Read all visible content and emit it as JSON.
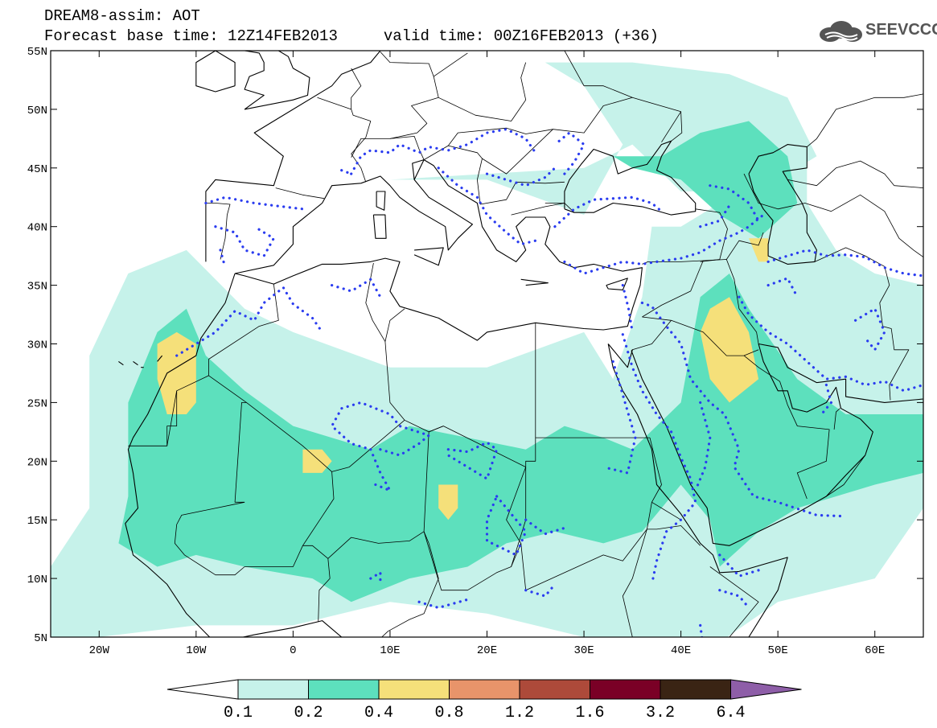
{
  "header": {
    "title_line1": "DREAM8-assim: AOT",
    "title_line2": "Forecast base time: 12Z14FEB2013     valid time: 00Z16FEB2013 (+36)"
  },
  "logo": {
    "text": "SEEVCCC"
  },
  "map": {
    "lon_range": [
      -25,
      65
    ],
    "lat_range": [
      5,
      55
    ],
    "lat_ticks": [
      {
        "value": 55,
        "label": "55N"
      },
      {
        "value": 50,
        "label": "50N"
      },
      {
        "value": 45,
        "label": "45N"
      },
      {
        "value": 40,
        "label": "40N"
      },
      {
        "value": 35,
        "label": "35N"
      },
      {
        "value": 30,
        "label": "30N"
      },
      {
        "value": 25,
        "label": "25N"
      },
      {
        "value": 20,
        "label": "20N"
      },
      {
        "value": 15,
        "label": "15N"
      },
      {
        "value": 10,
        "label": "10N"
      },
      {
        "value": 5,
        "label": "5N"
      }
    ],
    "lon_ticks": [
      {
        "value": -20,
        "label": "20W"
      },
      {
        "value": -10,
        "label": "10W"
      },
      {
        "value": 0,
        "label": "0"
      },
      {
        "value": 10,
        "label": "10E"
      },
      {
        "value": 20,
        "label": "20E"
      },
      {
        "value": 30,
        "label": "30E"
      },
      {
        "value": 40,
        "label": "40E"
      },
      {
        "value": 50,
        "label": "50E"
      },
      {
        "value": 60,
        "label": "60E"
      }
    ],
    "colors": {
      "land_bg": "#ffffff",
      "coast": "#000000",
      "contour_dotted": "#2a3cf0"
    },
    "aot_regions": [
      {
        "level": "0.1-0.2",
        "color": "#c6f2ea",
        "poly": [
          [
            -21,
            29
          ],
          [
            -17,
            36
          ],
          [
            -11,
            38
          ],
          [
            -5,
            33
          ],
          [
            0,
            31
          ],
          [
            10,
            28
          ],
          [
            20,
            28
          ],
          [
            30,
            31
          ],
          [
            33,
            27
          ],
          [
            36,
            34
          ],
          [
            37,
            40
          ],
          [
            40,
            40
          ],
          [
            44,
            42
          ],
          [
            48,
            45
          ],
          [
            53,
            47
          ],
          [
            53,
            42
          ],
          [
            56,
            38
          ],
          [
            60,
            36
          ],
          [
            65,
            35
          ],
          [
            65,
            16
          ],
          [
            60,
            10
          ],
          [
            50,
            8
          ],
          [
            43,
            4
          ],
          [
            35,
            5
          ],
          [
            30,
            5
          ],
          [
            20,
            7
          ],
          [
            10,
            8
          ],
          [
            0,
            6
          ],
          [
            -10,
            6
          ],
          [
            -20,
            5
          ],
          [
            -25,
            5
          ],
          [
            -25,
            11
          ],
          [
            -21,
            16
          ]
        ]
      },
      {
        "level": "0.1-0.2",
        "color": "#c6f2ea",
        "poly": [
          [
            10,
            44
          ],
          [
            20,
            44
          ],
          [
            30,
            41
          ],
          [
            34,
            47
          ],
          [
            30,
            52
          ],
          [
            26,
            54
          ],
          [
            35,
            54
          ],
          [
            45,
            53
          ],
          [
            51,
            51
          ],
          [
            54,
            46
          ],
          [
            48,
            43
          ],
          [
            40,
            43
          ],
          [
            35,
            47
          ],
          [
            30,
            45
          ]
        ]
      },
      {
        "level": "0.2-0.4",
        "color": "#5de0bd",
        "poly": [
          [
            -17,
            25
          ],
          [
            -14,
            31
          ],
          [
            -11,
            33
          ],
          [
            -9,
            29
          ],
          [
            -5,
            26
          ],
          [
            0,
            23
          ],
          [
            8,
            21
          ],
          [
            12,
            23
          ],
          [
            18,
            22
          ],
          [
            24,
            21
          ],
          [
            28,
            23
          ],
          [
            32,
            22
          ],
          [
            35,
            21
          ],
          [
            40,
            25
          ],
          [
            42,
            34
          ],
          [
            45,
            36
          ],
          [
            47,
            33
          ],
          [
            52,
            27
          ],
          [
            57,
            24
          ],
          [
            65,
            24
          ],
          [
            65,
            19
          ],
          [
            60,
            18
          ],
          [
            52,
            16
          ],
          [
            48,
            14
          ],
          [
            44,
            11
          ],
          [
            43,
            15
          ],
          [
            40,
            18
          ],
          [
            36,
            14
          ],
          [
            32,
            13
          ],
          [
            27,
            14
          ],
          [
            22,
            13
          ],
          [
            18,
            11
          ],
          [
            12,
            10
          ],
          [
            6,
            8
          ],
          [
            2,
            10
          ],
          [
            -5,
            11
          ],
          [
            -10,
            12
          ],
          [
            -14,
            11
          ],
          [
            -18,
            13
          ],
          [
            -17,
            17
          ]
        ]
      },
      {
        "level": "0.2-0.4",
        "color": "#5de0bd",
        "poly": [
          [
            33,
            46
          ],
          [
            38,
            46
          ],
          [
            42,
            48
          ],
          [
            47,
            49
          ],
          [
            51,
            46
          ],
          [
            52,
            42
          ],
          [
            48,
            39
          ],
          [
            44,
            41
          ],
          [
            40,
            44
          ],
          [
            35,
            45
          ]
        ]
      },
      {
        "level": "0.4-0.8",
        "color": "#f5e07a",
        "poly": [
          [
            -14,
            30
          ],
          [
            -12,
            31
          ],
          [
            -10,
            30
          ],
          [
            -10,
            25
          ],
          [
            -11,
            24
          ],
          [
            -13,
            24
          ],
          [
            -14,
            27
          ]
        ]
      },
      {
        "level": "0.4-0.8",
        "color": "#f5e07a",
        "poly": [
          [
            1,
            21
          ],
          [
            3,
            21
          ],
          [
            4,
            20
          ],
          [
            3,
            19
          ],
          [
            1,
            19
          ]
        ]
      },
      {
        "level": "0.4-0.8",
        "color": "#f5e07a",
        "poly": [
          [
            15,
            18
          ],
          [
            17,
            18
          ],
          [
            17,
            16
          ],
          [
            16,
            15
          ],
          [
            15,
            16
          ]
        ]
      },
      {
        "level": "0.4-0.8",
        "color": "#f5e07a",
        "poly": [
          [
            43,
            33
          ],
          [
            45,
            34
          ],
          [
            47,
            31
          ],
          [
            48,
            27
          ],
          [
            45,
            25
          ],
          [
            43,
            27
          ],
          [
            42,
            31
          ]
        ]
      },
      {
        "level": "0.4-0.8",
        "color": "#f5e07a",
        "poly": [
          [
            47,
            39
          ],
          [
            49,
            39
          ],
          [
            49,
            37
          ],
          [
            48,
            37
          ]
        ]
      }
    ]
  },
  "colorbar": {
    "colors": [
      "#ffffff",
      "#c6f2ea",
      "#5de0bd",
      "#f5e07a",
      "#e8946a",
      "#ad4a3a",
      "#7a0026",
      "#3a2414",
      "#8e5ea8"
    ],
    "labels": [
      "0.1",
      "0.2",
      "0.4",
      "0.8",
      "1.2",
      "1.6",
      "3.2",
      "6.4"
    ]
  }
}
